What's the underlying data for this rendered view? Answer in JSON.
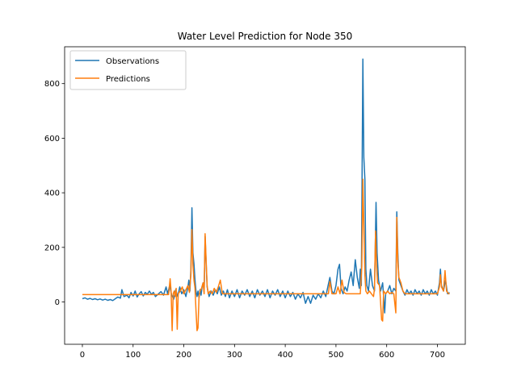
{
  "chart_data": {
    "type": "line",
    "title": "Water Level Prediction for Node 350",
    "xlabel": "",
    "ylabel": "",
    "xlim": [
      -35,
      755
    ],
    "ylim": [
      -155,
      935
    ],
    "xticks": [
      0,
      100,
      200,
      300,
      400,
      500,
      600,
      700
    ],
    "yticks": [
      0,
      200,
      400,
      600,
      800
    ],
    "grid": false,
    "legend_position": "upper-left",
    "series": [
      {
        "name": "Observations",
        "color": "#1f77b4",
        "points": [
          [
            0,
            12
          ],
          [
            5,
            15
          ],
          [
            10,
            10
          ],
          [
            15,
            13
          ],
          [
            20,
            9
          ],
          [
            25,
            12
          ],
          [
            30,
            8
          ],
          [
            35,
            11
          ],
          [
            40,
            7
          ],
          [
            45,
            10
          ],
          [
            50,
            6
          ],
          [
            55,
            9
          ],
          [
            60,
            5
          ],
          [
            65,
            12
          ],
          [
            70,
            18
          ],
          [
            75,
            14
          ],
          [
            78,
            45
          ],
          [
            82,
            20
          ],
          [
            88,
            25
          ],
          [
            92,
            15
          ],
          [
            96,
            35
          ],
          [
            100,
            22
          ],
          [
            104,
            40
          ],
          [
            108,
            18
          ],
          [
            112,
            30
          ],
          [
            116,
            38
          ],
          [
            120,
            22
          ],
          [
            124,
            35
          ],
          [
            128,
            28
          ],
          [
            132,
            40
          ],
          [
            136,
            28
          ],
          [
            140,
            35
          ],
          [
            144,
            20
          ],
          [
            150,
            30
          ],
          [
            155,
            38
          ],
          [
            160,
            25
          ],
          [
            165,
            55
          ],
          [
            168,
            30
          ],
          [
            172,
            60
          ],
          [
            176,
            25
          ],
          [
            180,
            10
          ],
          [
            184,
            45
          ],
          [
            188,
            20
          ],
          [
            192,
            55
          ],
          [
            196,
            30
          ],
          [
            200,
            45
          ],
          [
            204,
            20
          ],
          [
            208,
            55
          ],
          [
            210,
            80
          ],
          [
            212,
            40
          ],
          [
            214,
            120
          ],
          [
            216,
            345
          ],
          [
            218,
            180
          ],
          [
            220,
            140
          ],
          [
            222,
            80
          ],
          [
            224,
            40
          ],
          [
            226,
            20
          ],
          [
            228,
            40
          ],
          [
            230,
            15
          ],
          [
            232,
            45
          ],
          [
            234,
            25
          ],
          [
            236,
            55
          ],
          [
            238,
            70
          ],
          [
            240,
            35
          ],
          [
            242,
            240
          ],
          [
            244,
            140
          ],
          [
            246,
            55
          ],
          [
            248,
            35
          ],
          [
            250,
            20
          ],
          [
            254,
            40
          ],
          [
            258,
            25
          ],
          [
            262,
            45
          ],
          [
            266,
            30
          ],
          [
            270,
            55
          ],
          [
            274,
            25
          ],
          [
            278,
            40
          ],
          [
            282,
            20
          ],
          [
            286,
            45
          ],
          [
            290,
            15
          ],
          [
            295,
            40
          ],
          [
            300,
            20
          ],
          [
            305,
            45
          ],
          [
            310,
            15
          ],
          [
            315,
            40
          ],
          [
            320,
            25
          ],
          [
            325,
            45
          ],
          [
            330,
            20
          ],
          [
            335,
            40
          ],
          [
            340,
            15
          ],
          [
            345,
            45
          ],
          [
            350,
            25
          ],
          [
            355,
            40
          ],
          [
            360,
            20
          ],
          [
            365,
            45
          ],
          [
            370,
            15
          ],
          [
            375,
            40
          ],
          [
            380,
            25
          ],
          [
            385,
            45
          ],
          [
            390,
            20
          ],
          [
            395,
            40
          ],
          [
            400,
            15
          ],
          [
            405,
            40
          ],
          [
            410,
            20
          ],
          [
            415,
            35
          ],
          [
            420,
            10
          ],
          [
            425,
            30
          ],
          [
            430,
            15
          ],
          [
            435,
            35
          ],
          [
            440,
            -5
          ],
          [
            445,
            20
          ],
          [
            450,
            -5
          ],
          [
            455,
            25
          ],
          [
            460,
            10
          ],
          [
            465,
            30
          ],
          [
            470,
            15
          ],
          [
            475,
            40
          ],
          [
            480,
            20
          ],
          [
            485,
            65
          ],
          [
            488,
            90
          ],
          [
            492,
            40
          ],
          [
            496,
            30
          ],
          [
            500,
            60
          ],
          [
            504,
            120
          ],
          [
            507,
            138
          ],
          [
            510,
            50
          ],
          [
            514,
            30
          ],
          [
            518,
            55
          ],
          [
            522,
            40
          ],
          [
            526,
            80
          ],
          [
            530,
            110
          ],
          [
            534,
            60
          ],
          [
            538,
            155
          ],
          [
            542,
            90
          ],
          [
            546,
            50
          ],
          [
            548,
            120
          ],
          [
            550,
            60
          ],
          [
            553,
            890
          ],
          [
            555,
            530
          ],
          [
            557,
            450
          ],
          [
            559,
            120
          ],
          [
            561,
            60
          ],
          [
            564,
            40
          ],
          [
            568,
            120
          ],
          [
            572,
            60
          ],
          [
            576,
            40
          ],
          [
            579,
            365
          ],
          [
            581,
            180
          ],
          [
            584,
            80
          ],
          [
            588,
            40
          ],
          [
            592,
            70
          ],
          [
            596,
            -40
          ],
          [
            598,
            30
          ],
          [
            602,
            40
          ],
          [
            606,
            60
          ],
          [
            610,
            30
          ],
          [
            614,
            50
          ],
          [
            618,
            40
          ],
          [
            620,
            330
          ],
          [
            622,
            180
          ],
          [
            624,
            80
          ],
          [
            628,
            60
          ],
          [
            632,
            40
          ],
          [
            636,
            25
          ],
          [
            640,
            45
          ],
          [
            644,
            30
          ],
          [
            648,
            40
          ],
          [
            652,
            25
          ],
          [
            656,
            45
          ],
          [
            660,
            30
          ],
          [
            664,
            40
          ],
          [
            668,
            25
          ],
          [
            672,
            45
          ],
          [
            676,
            30
          ],
          [
            680,
            40
          ],
          [
            684,
            25
          ],
          [
            688,
            45
          ],
          [
            692,
            30
          ],
          [
            696,
            40
          ],
          [
            700,
            25
          ],
          [
            704,
            70
          ],
          [
            706,
            120
          ],
          [
            708,
            60
          ],
          [
            712,
            40
          ],
          [
            716,
            80
          ],
          [
            720,
            30
          ],
          [
            724,
            35
          ]
        ]
      },
      {
        "name": "Predictions",
        "color": "#ff7f0e",
        "points": [
          [
            0,
            27
          ],
          [
            20,
            27
          ],
          [
            40,
            27
          ],
          [
            60,
            27
          ],
          [
            80,
            27
          ],
          [
            100,
            27
          ],
          [
            120,
            27
          ],
          [
            140,
            27
          ],
          [
            160,
            27
          ],
          [
            170,
            27
          ],
          [
            173,
            85
          ],
          [
            175,
            40
          ],
          [
            177,
            -105
          ],
          [
            179,
            30
          ],
          [
            181,
            40
          ],
          [
            183,
            20
          ],
          [
            185,
            50
          ],
          [
            187,
            -100
          ],
          [
            189,
            30
          ],
          [
            193,
            40
          ],
          [
            197,
            55
          ],
          [
            200,
            30
          ],
          [
            204,
            45
          ],
          [
            208,
            60
          ],
          [
            211,
            35
          ],
          [
            214,
            100
          ],
          [
            216,
            265
          ],
          [
            218,
            140
          ],
          [
            220,
            80
          ],
          [
            222,
            50
          ],
          [
            224,
            -30
          ],
          [
            226,
            -105
          ],
          [
            228,
            -95
          ],
          [
            230,
            20
          ],
          [
            232,
            40
          ],
          [
            235,
            50
          ],
          [
            238,
            70
          ],
          [
            240,
            30
          ],
          [
            242,
            250
          ],
          [
            244,
            150
          ],
          [
            246,
            60
          ],
          [
            248,
            30
          ],
          [
            252,
            40
          ],
          [
            256,
            30
          ],
          [
            260,
            50
          ],
          [
            264,
            35
          ],
          [
            268,
            55
          ],
          [
            272,
            80
          ],
          [
            276,
            30
          ],
          [
            280,
            30
          ],
          [
            300,
            30
          ],
          [
            320,
            30
          ],
          [
            340,
            30
          ],
          [
            360,
            30
          ],
          [
            380,
            30
          ],
          [
            400,
            30
          ],
          [
            420,
            30
          ],
          [
            440,
            30
          ],
          [
            460,
            30
          ],
          [
            480,
            30
          ],
          [
            485,
            30
          ],
          [
            488,
            75
          ],
          [
            492,
            30
          ],
          [
            500,
            30
          ],
          [
            504,
            55
          ],
          [
            508,
            30
          ],
          [
            512,
            80
          ],
          [
            516,
            35
          ],
          [
            520,
            30
          ],
          [
            530,
            30
          ],
          [
            540,
            30
          ],
          [
            548,
            30
          ],
          [
            551,
            130
          ],
          [
            553,
            450
          ],
          [
            555,
            280
          ],
          [
            557,
            100
          ],
          [
            559,
            40
          ],
          [
            562,
            30
          ],
          [
            566,
            40
          ],
          [
            570,
            30
          ],
          [
            574,
            20
          ],
          [
            576,
            50
          ],
          [
            578,
            260
          ],
          [
            580,
            140
          ],
          [
            582,
            70
          ],
          [
            586,
            60
          ],
          [
            590,
            -65
          ],
          [
            592,
            -70
          ],
          [
            594,
            40
          ],
          [
            598,
            30
          ],
          [
            602,
            40
          ],
          [
            606,
            30
          ],
          [
            610,
            35
          ],
          [
            614,
            30
          ],
          [
            618,
            -40
          ],
          [
            620,
            310
          ],
          [
            622,
            150
          ],
          [
            624,
            90
          ],
          [
            628,
            70
          ],
          [
            632,
            40
          ],
          [
            636,
            30
          ],
          [
            640,
            30
          ],
          [
            660,
            30
          ],
          [
            680,
            30
          ],
          [
            700,
            30
          ],
          [
            704,
            55
          ],
          [
            706,
            100
          ],
          [
            708,
            55
          ],
          [
            712,
            40
          ],
          [
            715,
            115
          ],
          [
            718,
            40
          ],
          [
            722,
            30
          ],
          [
            724,
            30
          ]
        ]
      }
    ]
  }
}
